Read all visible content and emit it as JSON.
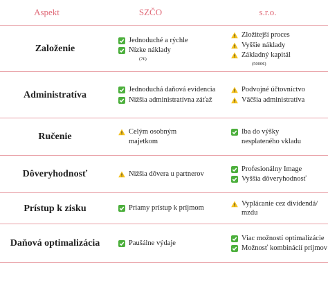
{
  "header": {
    "aspect": "Aspekt",
    "szco": "SZČO",
    "sro": "s.r.o."
  },
  "rows": [
    {
      "aspect": "Založenie",
      "szco": [
        "Jednoduché a rýchle",
        "Nízke náklady"
      ],
      "szco_note": "(7€)",
      "sro": [
        "Zložitejší proces",
        "Vyššie náklady",
        "Základný kapitál"
      ],
      "sro_note": "(5000€)"
    },
    {
      "aspect": "Administratíva",
      "szco": [
        "Jednoduchá daňová evidencia",
        "Nižšia administratívna záťaž"
      ],
      "sro": [
        "Podvojné účtovníctvo",
        "Väčšia administratíva"
      ]
    },
    {
      "aspect": "Ručenie",
      "szco": [
        "Celým osobným majetkom"
      ],
      "sro": [
        "Iba do výšky nesplateného vkladu"
      ]
    },
    {
      "aspect": "Dôveryhodnosť",
      "szco": [
        "Nižšia dôvera u partnerov"
      ],
      "sro": [
        "Profesionálny Image",
        "Vyššia dôveryhodnosť"
      ]
    },
    {
      "aspect": "Prístup k zisku",
      "szco": [
        "Priamy prístup k príjmom"
      ],
      "sro": [
        "Vyplácanie cez dividendá/ mzdu"
      ]
    },
    {
      "aspect": "Daňová optimalizácia",
      "szco": [
        "Paušálne výdaje"
      ],
      "sro": [
        "Viac možností optimalizácie",
        "Možnosť kombinácií príjmov"
      ]
    }
  ]
}
